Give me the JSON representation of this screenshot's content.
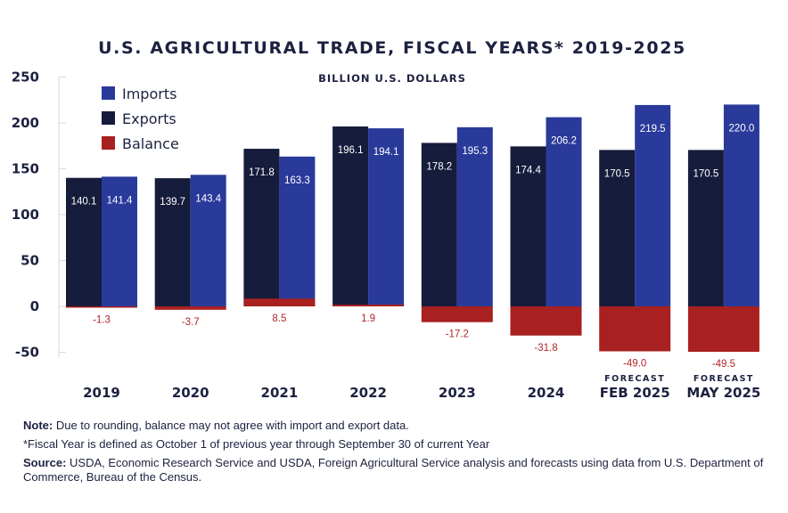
{
  "chart_data": {
    "type": "bar",
    "title": "U.S. AGRICULTURAL TRADE, FISCAL YEARS* 2019-2025",
    "subtitle": "BILLION U.S. DOLLARS",
    "categories": [
      "2019",
      "2020",
      "2021",
      "2022",
      "2023",
      "2024",
      "FEB 2025",
      "MAY 2025"
    ],
    "category_prefix": [
      "",
      "",
      "",
      "",
      "",
      "",
      "FORECAST",
      "FORECAST"
    ],
    "series": [
      {
        "name": "Exports",
        "values": [
          140.1,
          139.7,
          171.8,
          196.1,
          178.2,
          174.4,
          170.5,
          170.5
        ]
      },
      {
        "name": "Imports",
        "values": [
          141.4,
          143.4,
          163.3,
          194.1,
          195.3,
          206.2,
          219.5,
          220.0
        ]
      },
      {
        "name": "Balance",
        "values": [
          -1.3,
          -3.7,
          8.5,
          1.9,
          -17.2,
          -31.8,
          -49.0,
          -49.5
        ]
      }
    ],
    "value_labels": {
      "Exports": [
        "140.1",
        "139.7",
        "171.8",
        "196.1",
        "178.2",
        "174.4",
        "170.5",
        "170.5"
      ],
      "Imports": [
        "141.4",
        "143.4",
        "163.3",
        "194.1",
        "195.3",
        "206.2",
        "219.5",
        "220.0"
      ],
      "Balance": [
        "-1.3",
        "-3.7",
        "8.5",
        "1.9",
        "-17.2",
        "-31.8",
        "-49.0",
        "-49.5"
      ]
    },
    "legend_order": [
      "Imports",
      "Exports",
      "Balance"
    ],
    "legend_position": "top-left",
    "ylim": [
      -50,
      250
    ],
    "yticks": [
      -50,
      0,
      50,
      100,
      150,
      200,
      250
    ],
    "grid": false,
    "colors": {
      "Exports": "#161c3b",
      "Imports": "#2a3a9a",
      "Balance": "#a8201f"
    }
  },
  "notes": {
    "note_label": "Note:",
    "note_text": " Due to rounding, balance may not agree with import and export data.",
    "fiscal_text": "*Fiscal Year is defined as October 1 of previous year through September 30 of current Year",
    "source_label": "Source:",
    "source_text": " USDA, Economic Research Service and USDA, Foreign Agricultural Service analysis and forecasts using data from U.S. Department of Commerce, Bureau of the Census."
  }
}
